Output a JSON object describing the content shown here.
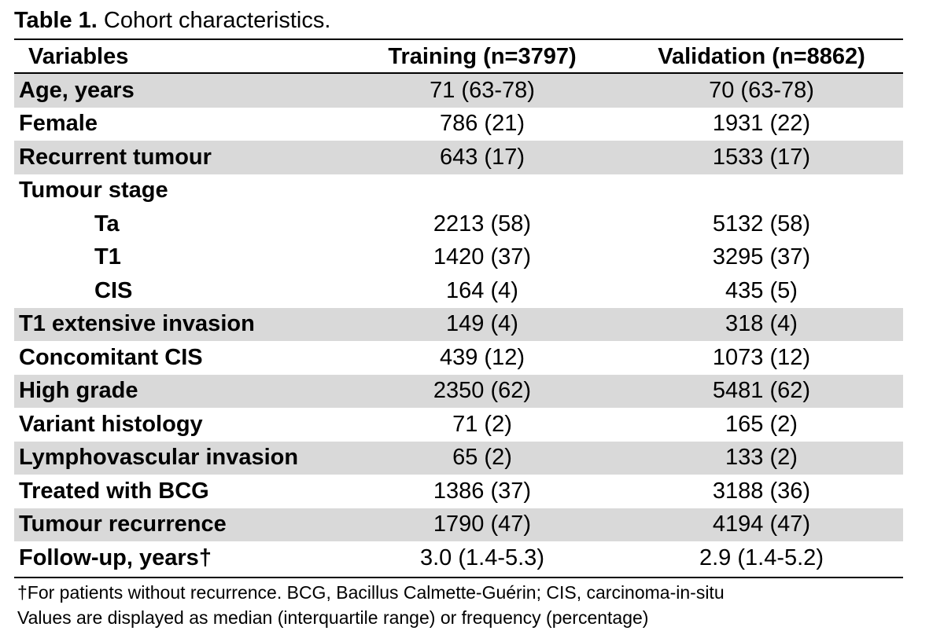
{
  "caption": {
    "label": "Table 1.",
    "text": " Cohort characteristics."
  },
  "columns": {
    "variables": "Variables",
    "training": "Training (n=3797)",
    "validation": "Validation (n=8862)"
  },
  "rows": [
    {
      "variable": "Age, years",
      "training": "71 (63-78)",
      "validation": "70 (63-78)"
    },
    {
      "variable": "Female",
      "training": "786 (21)",
      "validation": "1931 (22)"
    },
    {
      "variable": "Recurrent tumour",
      "training": "643 (17)",
      "validation": "1533 (17)"
    },
    {
      "variable": "Tumour stage",
      "training": "",
      "validation": ""
    },
    {
      "variable": "Ta",
      "training": "2213 (58)",
      "validation": "5132 (58)"
    },
    {
      "variable": "T1",
      "training": "1420 (37)",
      "validation": "3295 (37)"
    },
    {
      "variable": "CIS",
      "training": "164 (4)",
      "validation": "435 (5)"
    },
    {
      "variable": "T1 extensive invasion",
      "training": "149 (4)",
      "validation": "318 (4)"
    },
    {
      "variable": "Concomitant CIS",
      "training": "439 (12)",
      "validation": "1073 (12)"
    },
    {
      "variable": "High grade",
      "training": "2350 (62)",
      "validation": "5481 (62)"
    },
    {
      "variable": "Variant histology",
      "training": "71 (2)",
      "validation": "165 (2)"
    },
    {
      "variable": "Lymphovascular invasion",
      "training": "65 (2)",
      "validation": "133 (2)"
    },
    {
      "variable": "Treated with BCG",
      "training": "1386 (37)",
      "validation": "3188 (36)"
    },
    {
      "variable": "Tumour recurrence",
      "training": "1790 (47)",
      "validation": "4194 (47)"
    },
    {
      "variable": "Follow-up, years†",
      "training": "3.0 (1.4-5.3)",
      "validation": "2.9 (1.4-5.2)"
    }
  ],
  "footnotes": [
    "†For patients without recurrence. BCG, Bacillus Calmette-Guérin; CIS, carcinoma-in-situ",
    "Values are displayed as median (interquartile range) or frequency (percentage)"
  ],
  "colors": {
    "shaded_row": "#d9d9d9",
    "rule": "#000000"
  }
}
